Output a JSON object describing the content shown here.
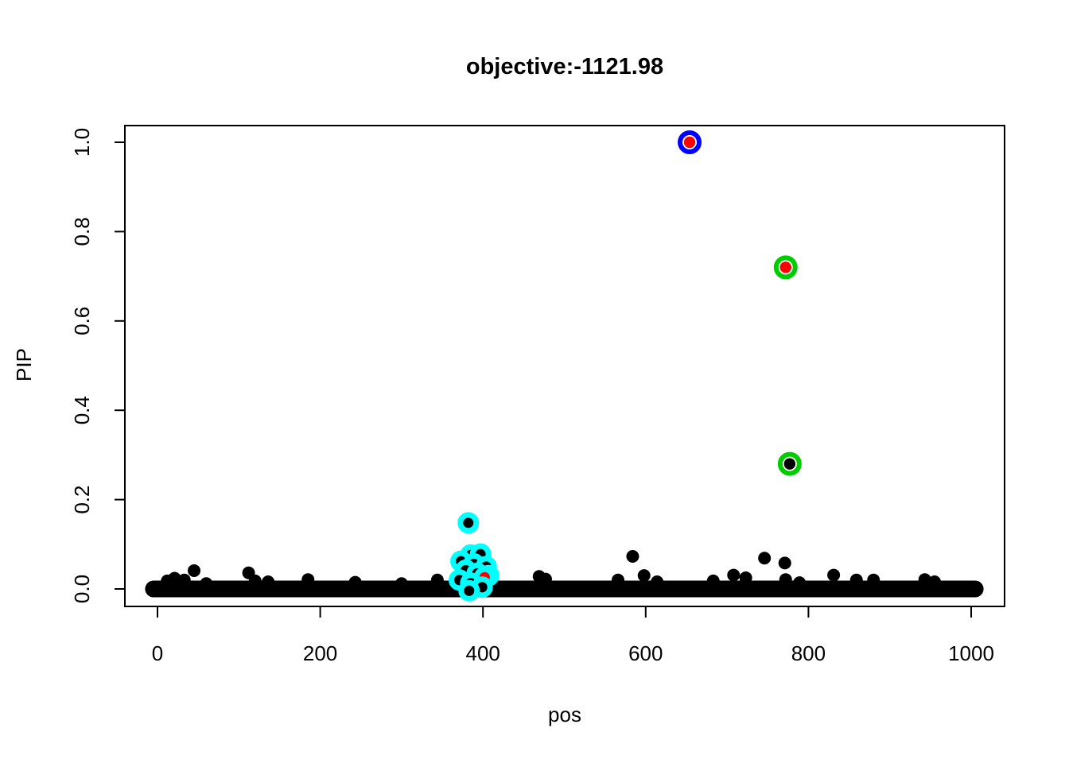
{
  "chart_data": {
    "type": "scatter",
    "title": "objective:-1121.98",
    "xlabel": "pos",
    "ylabel": "PIP",
    "xlim": [
      0,
      1000
    ],
    "ylim": [
      0.0,
      1.0
    ],
    "grid": false,
    "legend": "none",
    "xticks": [
      0,
      200,
      400,
      600,
      800,
      1000
    ],
    "yticks": [
      0.0,
      0.2,
      0.4,
      0.6,
      0.8,
      1.0
    ],
    "ytick_labels": [
      "0.0",
      "0.2",
      "0.4",
      "0.6",
      "0.8",
      "1.0"
    ],
    "colors": {
      "point": "#000000",
      "red": "#FF0000",
      "green": "#00CD00",
      "blue": "#0000FF",
      "cyan": "#00FFFF",
      "axis": "#000000",
      "background": "#FFFFFF"
    },
    "baseline_band": {
      "description": "dense mass of overlapping black points at PIP near 0 across all positions",
      "pip": 0.0,
      "pos_start": -5,
      "pos_end": 1005
    },
    "highlighted_points": [
      {
        "pos": 654,
        "pip": 1.0,
        "dot_color": "#FF0000",
        "ring_color": "#0000FF"
      },
      {
        "pos": 772,
        "pip": 0.72,
        "dot_color": "#FF0000",
        "ring_color": "#00CD00"
      },
      {
        "pos": 777,
        "pip": 0.28,
        "dot_color": "#000000",
        "ring_color": "#00CD00"
      }
    ],
    "cyan_cluster_points": [
      {
        "pos": 382,
        "pip": 0.148,
        "dot_color": "#000000"
      },
      {
        "pos": 385,
        "pip": 0.076,
        "dot_color": "#000000"
      },
      {
        "pos": 397,
        "pip": 0.078,
        "dot_color": "#000000"
      },
      {
        "pos": 373,
        "pip": 0.062,
        "dot_color": "#000000"
      },
      {
        "pos": 389,
        "pip": 0.056,
        "dot_color": "#000000"
      },
      {
        "pos": 404,
        "pip": 0.05,
        "dot_color": "#000000"
      },
      {
        "pos": 379,
        "pip": 0.042,
        "dot_color": "#000000"
      },
      {
        "pos": 393,
        "pip": 0.035,
        "dot_color": "#000000"
      },
      {
        "pos": 407,
        "pip": 0.03,
        "dot_color": "#000000"
      },
      {
        "pos": 371,
        "pip": 0.02,
        "dot_color": "#000000"
      },
      {
        "pos": 385,
        "pip": 0.013,
        "dot_color": "#000000"
      },
      {
        "pos": 402,
        "pip": 0.026,
        "dot_color": "#FF0000"
      },
      {
        "pos": 399,
        "pip": 0.004,
        "dot_color": "#000000"
      },
      {
        "pos": 383,
        "pip": -0.004,
        "dot_color": "#000000"
      }
    ],
    "background_points": [
      {
        "pos": 12,
        "pip": 0.018
      },
      {
        "pos": 21,
        "pip": 0.024
      },
      {
        "pos": 33,
        "pip": 0.02
      },
      {
        "pos": 45,
        "pip": 0.041
      },
      {
        "pos": 60,
        "pip": 0.012
      },
      {
        "pos": 112,
        "pip": 0.036
      },
      {
        "pos": 120,
        "pip": 0.018
      },
      {
        "pos": 136,
        "pip": 0.016
      },
      {
        "pos": 185,
        "pip": 0.021
      },
      {
        "pos": 243,
        "pip": 0.015
      },
      {
        "pos": 300,
        "pip": 0.012
      },
      {
        "pos": 344,
        "pip": 0.02
      },
      {
        "pos": 469,
        "pip": 0.028
      },
      {
        "pos": 477,
        "pip": 0.022
      },
      {
        "pos": 566,
        "pip": 0.02
      },
      {
        "pos": 584,
        "pip": 0.073
      },
      {
        "pos": 598,
        "pip": 0.03
      },
      {
        "pos": 614,
        "pip": 0.016
      },
      {
        "pos": 683,
        "pip": 0.018
      },
      {
        "pos": 708,
        "pip": 0.031
      },
      {
        "pos": 723,
        "pip": 0.025
      },
      {
        "pos": 746,
        "pip": 0.069
      },
      {
        "pos": 771,
        "pip": 0.058
      },
      {
        "pos": 772,
        "pip": 0.021
      },
      {
        "pos": 789,
        "pip": 0.014
      },
      {
        "pos": 831,
        "pip": 0.031
      },
      {
        "pos": 859,
        "pip": 0.02
      },
      {
        "pos": 880,
        "pip": 0.02
      },
      {
        "pos": 943,
        "pip": 0.021
      },
      {
        "pos": 955,
        "pip": 0.016
      }
    ]
  }
}
